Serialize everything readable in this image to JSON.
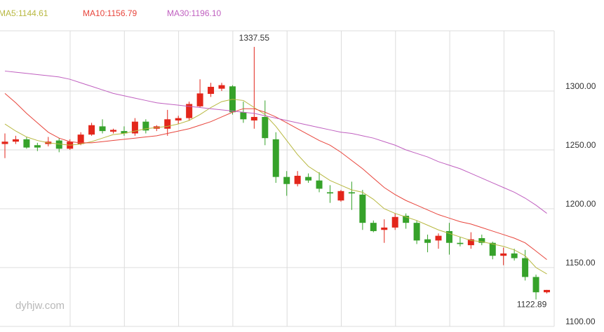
{
  "chart_data": {
    "type": "candlestick",
    "watermark": "dyhjw.com",
    "up_color": "#e3261b",
    "down_color": "#36a22a",
    "ohlc": {
      "open": [
        1255,
        1257,
        1259,
        1254,
        1255,
        1258,
        1251,
        1255,
        1263,
        1270,
        1265.5,
        1266,
        1264,
        1274,
        1268,
        1268,
        1275,
        1277,
        1287,
        1297.6,
        1302,
        1304,
        1282,
        1275,
        1278,
        1259,
        1227,
        1221,
        1227,
        1224,
        1214,
        1207,
        1214,
        1212,
        1188,
        1182,
        1184,
        1194,
        1188,
        1174,
        1173,
        1181,
        1171,
        1169,
        1175,
        1171,
        1160,
        1162,
        1158,
        1142,
        1129
      ],
      "high": [
        1264,
        1262,
        1261,
        1256,
        1261,
        1260,
        1259,
        1265,
        1273,
        1276,
        1268,
        1270,
        1277,
        1276,
        1271,
        1284,
        1279,
        1291,
        1310,
        1307,
        1307,
        1305,
        1291,
        1337.55,
        1292,
        1265,
        1232,
        1232,
        1230,
        1231,
        1220,
        1216,
        1223,
        1216,
        1190,
        1191,
        1196,
        1196,
        1190,
        1178,
        1179,
        1188,
        1176,
        1180,
        1178,
        1172,
        1167,
        1166,
        1165,
        1144,
        1131
      ],
      "low": [
        1243,
        1255,
        1251,
        1249,
        1253,
        1248,
        1250,
        1254,
        1262,
        1264,
        1264,
        1262,
        1262,
        1264,
        1266,
        1262,
        1272,
        1275,
        1286,
        1295,
        1300,
        1280,
        1273,
        1268,
        1254,
        1222,
        1211,
        1219,
        1222,
        1214,
        1205,
        1206,
        1199,
        1182,
        1180,
        1171,
        1182,
        1183,
        1170,
        1163,
        1166,
        1161,
        1168,
        1166,
        1169,
        1157,
        1152,
        1156,
        1139,
        1122.89,
        1128
      ],
      "close": [
        1257,
        1259,
        1252,
        1252,
        1257,
        1251,
        1257,
        1263,
        1271,
        1266,
        1267,
        1264,
        1274,
        1266.5,
        1270,
        1276,
        1277,
        1289,
        1298,
        1303.6,
        1305,
        1282,
        1276,
        1278,
        1260,
        1227,
        1221,
        1228,
        1224,
        1217,
        1213,
        1215,
        1213,
        1188,
        1181,
        1184,
        1193,
        1188,
        1173,
        1171,
        1177,
        1171,
        1170,
        1174,
        1171,
        1160,
        1162,
        1158,
        1142,
        1129,
        1131
      ]
    },
    "series": [
      {
        "name": "MA5:1144.61",
        "color": "#b8b840",
        "values": [
          1272,
          1266,
          1261,
          1258,
          1256,
          1255,
          1254,
          1255,
          1257,
          1260,
          1263,
          1264,
          1266,
          1268,
          1269,
          1270,
          1272,
          1275,
          1280,
          1286,
          1291,
          1293,
          1292,
          1286,
          1280,
          1270,
          1258,
          1246,
          1236,
          1230,
          1224,
          1220,
          1216,
          1214,
          1208,
          1200,
          1196,
          1193,
          1190,
          1186,
          1182,
          1179,
          1176,
          1173,
          1172,
          1170,
          1168,
          1165,
          1160,
          1150,
          1144.61
        ]
      },
      {
        "name": "MA10:1156.79",
        "color": "#e8453c",
        "values": [
          1298,
          1290,
          1281,
          1273,
          1265,
          1260,
          1257,
          1256,
          1256,
          1257,
          1258,
          1259,
          1260,
          1261,
          1262,
          1264,
          1266,
          1268,
          1271,
          1274,
          1278,
          1282,
          1285,
          1285,
          1282,
          1278,
          1273,
          1268,
          1263,
          1258,
          1254,
          1248,
          1241,
          1234,
          1226,
          1218,
          1212,
          1207,
          1203,
          1199,
          1195,
          1192,
          1189,
          1187,
          1184,
          1181,
          1178,
          1175,
          1171,
          1164,
          1156.79
        ]
      },
      {
        "name": "MA30:1196.10",
        "color": "#c060c0",
        "values": [
          1317,
          1316,
          1315,
          1314,
          1313,
          1312,
          1310,
          1307,
          1304,
          1301,
          1298,
          1296,
          1294,
          1292,
          1290,
          1289,
          1288,
          1287,
          1286,
          1285,
          1284,
          1283,
          1282,
          1281,
          1279,
          1277,
          1275,
          1273,
          1271,
          1269,
          1267,
          1265,
          1264,
          1262,
          1260,
          1257,
          1254,
          1250,
          1247,
          1244,
          1240,
          1237,
          1234,
          1230,
          1226,
          1222,
          1218,
          1214,
          1209,
          1203,
          1196.1
        ]
      }
    ],
    "annotations": [
      "1337.55",
      "1122.89"
    ],
    "ylim": [
      1100,
      1353.57
    ],
    "yticks": [
      {
        "value": 1100,
        "label": "1100.00"
      },
      {
        "value": 1150,
        "label": "1150.00"
      },
      {
        "value": 1200,
        "label": "1200.00"
      },
      {
        "value": 1250,
        "label": "1250.00"
      },
      {
        "value": 1300,
        "label": "1300.00"
      }
    ],
    "grid": true
  }
}
